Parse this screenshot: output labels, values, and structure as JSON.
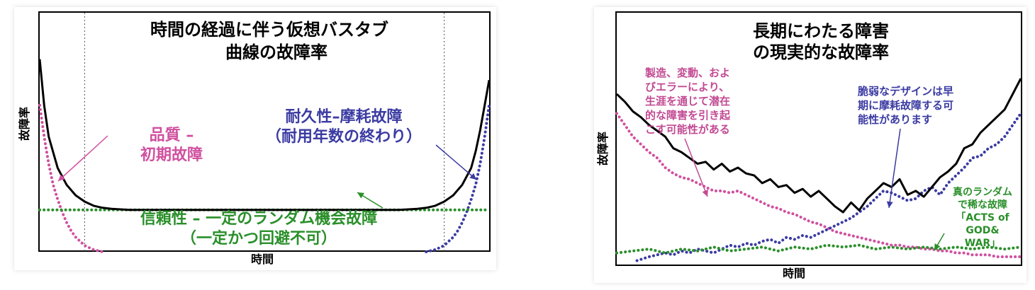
{
  "colors": {
    "total": "#000000",
    "quality": "#d0509f",
    "wearout": "#3b3ba3",
    "random": "#2a8f2a",
    "frame": "#000000"
  },
  "chart_data": [
    {
      "type": "line",
      "title_lines": [
        "時間の経過に伴う仮想バスタブ",
        "曲線の故障率"
      ],
      "xlabel": "時間",
      "ylabel": "故障率",
      "grid": false,
      "vlines_x": [
        10,
        90
      ],
      "xlim": [
        0,
        100
      ],
      "ylim": [
        0,
        100
      ],
      "series": [
        {
          "role": "total",
          "style": "solid",
          "x": [
            0,
            1,
            2,
            4,
            6,
            8,
            10,
            12,
            14,
            16,
            20,
            30,
            50,
            70,
            80,
            84,
            86,
            88,
            90,
            92,
            94,
            96,
            97,
            98,
            99,
            100
          ],
          "y": [
            92,
            70,
            55,
            40,
            32,
            27,
            24,
            22,
            21,
            20.5,
            20,
            20,
            20,
            20,
            20,
            20.5,
            21,
            22,
            24,
            27,
            32,
            40,
            48,
            58,
            70,
            82
          ]
        },
        {
          "role": "quality",
          "style": "dotted",
          "x": [
            0,
            1,
            2,
            3,
            4,
            5,
            6,
            7,
            8,
            9,
            10,
            11,
            12,
            13,
            14
          ],
          "y": [
            70,
            55,
            42,
            32,
            25,
            19,
            14,
            10,
            7,
            5,
            3,
            2,
            1,
            0.5,
            0
          ]
        },
        {
          "role": "wearout",
          "style": "dotted",
          "x": [
            86,
            87,
            88,
            89,
            90,
            91,
            92,
            93,
            94,
            95,
            96,
            97,
            98,
            99,
            100
          ],
          "y": [
            0,
            0.5,
            1,
            2,
            3,
            5,
            7,
            10,
            14,
            19,
            25,
            32,
            42,
            55,
            70
          ]
        },
        {
          "role": "random",
          "style": "dotted",
          "x": [
            0,
            100
          ],
          "y": [
            20,
            20
          ]
        }
      ],
      "annotations": {
        "quality": [
          "品質 –",
          "初期故障"
        ],
        "wearout": [
          "耐久性–摩耗故障",
          "（耐用年数の終わり）"
        ],
        "random": [
          "信頼性 – 一定のランダム機会故障",
          "（一定かつ回避不可）"
        ]
      }
    },
    {
      "type": "line",
      "title_lines": [
        "長期にわたる障害",
        "の現実的な故障率"
      ],
      "xlabel": "時間",
      "ylabel": "故障率",
      "grid": false,
      "xlim": [
        0,
        100
      ],
      "ylim": [
        0,
        100
      ],
      "series": [
        {
          "role": "total",
          "style": "solid",
          "x": [
            0,
            2,
            4,
            6,
            8,
            10,
            12,
            14,
            16,
            18,
            20,
            22,
            24,
            26,
            28,
            30,
            32,
            34,
            36,
            38,
            40,
            42,
            44,
            46,
            48,
            50,
            52,
            54,
            56,
            58,
            60,
            62,
            64,
            66,
            68,
            70,
            72,
            74,
            76,
            78,
            80,
            82,
            84,
            86,
            88,
            90,
            92,
            94,
            96,
            98,
            100
          ],
          "y": [
            88,
            84,
            79,
            76,
            72,
            69,
            66,
            60,
            58,
            55,
            52,
            53,
            49,
            52,
            48,
            50,
            47,
            46,
            42,
            44,
            40,
            41,
            37,
            39,
            35,
            38,
            34,
            30,
            27,
            32,
            28,
            34,
            38,
            42,
            40,
            44,
            36,
            38,
            35,
            40,
            45,
            48,
            52,
            60,
            62,
            68,
            72,
            76,
            80,
            88,
            96
          ]
        },
        {
          "role": "quality",
          "style": "dotted",
          "x": [
            0,
            2,
            4,
            6,
            8,
            10,
            12,
            14,
            16,
            18,
            20,
            22,
            24,
            26,
            28,
            30,
            32,
            34,
            36,
            38,
            40,
            42,
            44,
            46,
            48,
            50,
            52,
            54,
            56,
            58,
            60,
            62,
            64,
            66,
            68,
            70,
            72,
            74,
            76,
            78,
            80,
            82,
            84,
            86,
            88,
            90,
            92,
            94,
            96,
            98,
            100
          ],
          "y": [
            78,
            72,
            66,
            62,
            58,
            55,
            50,
            47,
            45,
            44,
            42,
            40,
            38,
            38,
            37,
            38,
            36,
            34,
            32,
            30,
            29,
            27,
            26,
            24,
            22,
            21,
            19,
            17,
            16,
            15,
            14,
            13,
            12,
            11,
            10,
            10,
            9,
            9,
            8,
            8,
            7,
            7,
            6,
            6,
            5,
            5,
            5,
            4,
            4,
            4,
            4
          ]
        },
        {
          "role": "wearout",
          "style": "dotted",
          "x": [
            5,
            8,
            10,
            12,
            14,
            16,
            18,
            20,
            22,
            24,
            26,
            28,
            30,
            32,
            34,
            36,
            38,
            40,
            42,
            44,
            46,
            48,
            50,
            52,
            54,
            56,
            58,
            60,
            62,
            64,
            66,
            68,
            70,
            72,
            74,
            76,
            78,
            80,
            82,
            84,
            86,
            88,
            90,
            92,
            94,
            96,
            98,
            100
          ],
          "y": [
            2,
            4,
            5,
            6,
            5,
            7,
            6,
            8,
            7,
            6,
            8,
            10,
            9,
            11,
            10,
            12,
            13,
            11,
            14,
            13,
            15,
            14,
            16,
            18,
            20,
            22,
            24,
            27,
            30,
            34,
            38,
            37,
            35,
            33,
            34,
            38,
            40,
            36,
            42,
            46,
            50,
            55,
            56,
            60,
            62,
            66,
            72,
            78
          ]
        },
        {
          "role": "random",
          "style": "dotted",
          "x": [
            0,
            4,
            8,
            12,
            16,
            20,
            24,
            28,
            32,
            36,
            40,
            44,
            48,
            52,
            56,
            60,
            64,
            68,
            72,
            76,
            80,
            84,
            88,
            92,
            96,
            100
          ],
          "y": [
            6,
            7,
            8,
            6,
            8,
            7,
            9,
            7,
            8,
            9,
            7,
            9,
            8,
            10,
            9,
            10,
            8,
            9,
            8,
            9,
            8,
            9,
            8,
            9,
            8,
            9
          ]
        }
      ],
      "annotations": {
        "quality": [
          "製造、変動、およ",
          "びエラーにより、",
          "生涯を通じて潜在",
          "的な障害を引き起",
          "こす可能性がある"
        ],
        "wearout": [
          "脆弱なデザインは早",
          "期に摩耗故障する可",
          "能性があります"
        ],
        "random": [
          "真のランダム",
          "で稀な故障",
          "「ACTS of",
          "GOD&",
          "WAR」"
        ]
      }
    }
  ]
}
